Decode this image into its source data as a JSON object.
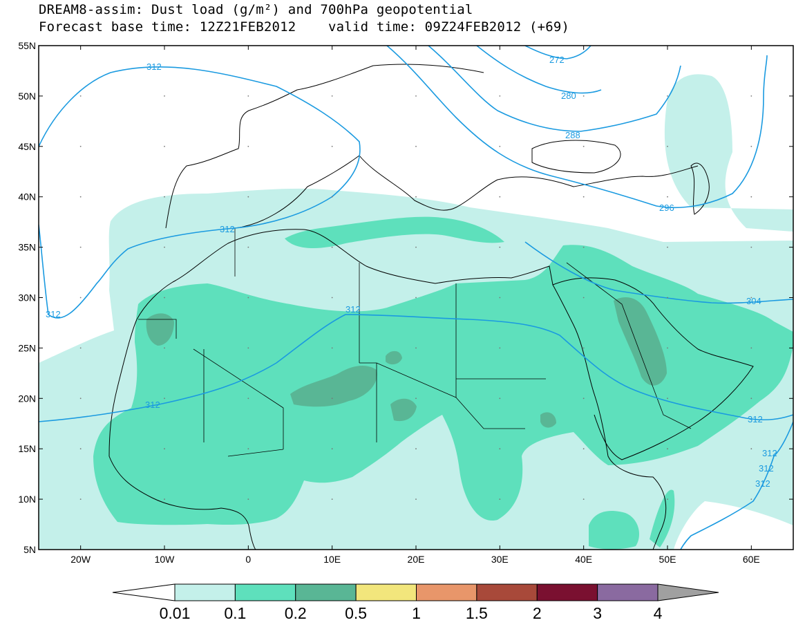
{
  "title": {
    "line1": "DREAM8-assim: Dust load (g/m²) and 700hPa geopotential",
    "base_time": "Forecast base time: 12Z21FEB2012",
    "valid_time": "valid time: 09Z24FEB2012 (+69)"
  },
  "map": {
    "lon_range": [
      -25,
      65
    ],
    "lat_range": [
      5,
      55
    ],
    "lat_labels": [
      "55N",
      "50N",
      "45N",
      "40N",
      "35N",
      "30N",
      "25N",
      "20N",
      "15N",
      "10N",
      "5N"
    ],
    "lon_labels": [
      "20W",
      "10W",
      "0",
      "10E",
      "20E",
      "30E",
      "40E",
      "50E",
      "60E"
    ]
  },
  "contour_labels": [
    "272",
    "280",
    "288",
    "296",
    "304",
    "312"
  ],
  "colors": {
    "contour_line": "#1a9ae0",
    "coastline": "#000000",
    "level_001": "#c4f0ea",
    "level_01": "#5ee0bc",
    "level_02": "#59b695",
    "level_05": "#f2e67c",
    "level_1": "#e8966a",
    "level_15": "#a8493a",
    "level_2": "#7a1030",
    "level_3": "#8a6aa0"
  },
  "colorbar": {
    "labels": [
      "0.01",
      "0.1",
      "0.2",
      "0.5",
      "1",
      "1.5",
      "2",
      "3",
      "4"
    ],
    "colors": [
      "#c4f0ea",
      "#5ee0bc",
      "#59b695",
      "#f2e67c",
      "#e8966a",
      "#a8493a",
      "#7a1030",
      "#8a6aa0"
    ]
  }
}
